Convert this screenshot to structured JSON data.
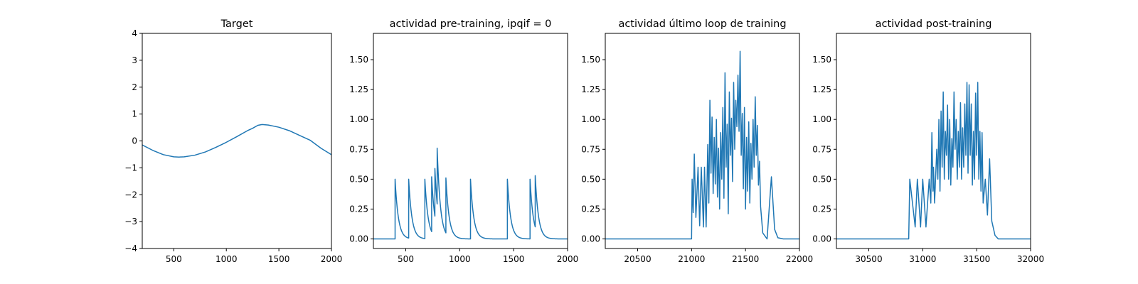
{
  "chart_data": [
    {
      "type": "line",
      "title": "Target",
      "xlabel": "",
      "ylabel": "",
      "xlim": [
        200,
        2000
      ],
      "ylim": [
        -4,
        4
      ],
      "xticks": [
        "500",
        "1000",
        "1500",
        "2000"
      ],
      "yticks": [
        "−4",
        "−3",
        "−2",
        "−1",
        "0",
        "1",
        "2",
        "3",
        "4"
      ],
      "grid": false,
      "color": "#1f77b4",
      "points": [
        [
          200,
          -0.15
        ],
        [
          300,
          -0.35
        ],
        [
          400,
          -0.51
        ],
        [
          500,
          -0.59
        ],
        [
          550,
          -0.6
        ],
        [
          600,
          -0.59
        ],
        [
          700,
          -0.53
        ],
        [
          800,
          -0.41
        ],
        [
          900,
          -0.24
        ],
        [
          1000,
          -0.05
        ],
        [
          1100,
          0.16
        ],
        [
          1200,
          0.38
        ],
        [
          1250,
          0.47
        ],
        [
          1300,
          0.58
        ],
        [
          1340,
          0.61
        ],
        [
          1400,
          0.59
        ],
        [
          1500,
          0.51
        ],
        [
          1600,
          0.38
        ],
        [
          1700,
          0.2
        ],
        [
          1800,
          0.02
        ],
        [
          1900,
          -0.27
        ],
        [
          2000,
          -0.51
        ]
      ]
    },
    {
      "type": "line",
      "title": "actividad pre-training, ipqif = 0",
      "xlabel": "",
      "ylabel": "",
      "xlim": [
        200,
        2000
      ],
      "ylim": [
        -0.08,
        1.72
      ],
      "xticks": [
        "500",
        "1000",
        "1500",
        "2000"
      ],
      "yticks": [
        "0.00",
        "0.25",
        "0.50",
        "0.75",
        "1.00",
        "1.25",
        "1.50"
      ],
      "grid": false,
      "color": "#1f77b4",
      "spikes": [
        [
          400,
          0.5
        ],
        [
          525,
          0.5
        ],
        [
          675,
          0.5
        ],
        [
          740,
          0.52
        ],
        [
          770,
          0.59
        ],
        [
          790,
          0.76
        ],
        [
          870,
          0.51
        ],
        [
          1100,
          0.5
        ],
        [
          1440,
          0.5
        ],
        [
          1650,
          0.5
        ],
        [
          1700,
          0.53
        ]
      ],
      "decay": 30,
      "baseline": 0
    },
    {
      "type": "line",
      "title": "actividad último loop de training",
      "xlabel": "",
      "ylabel": "",
      "xlim": [
        20200,
        22000
      ],
      "ylim": [
        -0.08,
        1.72
      ],
      "xticks": [
        "20500",
        "21000",
        "21500",
        "22000"
      ],
      "yticks": [
        "0.00",
        "0.25",
        "0.50",
        "0.75",
        "1.00",
        "1.25",
        "1.50"
      ],
      "grid": false,
      "color": "#1f77b4",
      "points": [
        [
          20200,
          0
        ],
        [
          21000,
          0
        ],
        [
          21005,
          0.5
        ],
        [
          21015,
          0.22
        ],
        [
          21025,
          0.71
        ],
        [
          21040,
          0.18
        ],
        [
          21060,
          0.6
        ],
        [
          21075,
          0.11
        ],
        [
          21090,
          0.6
        ],
        [
          21110,
          0.1
        ],
        [
          21120,
          0.6
        ],
        [
          21135,
          0.1
        ],
        [
          21150,
          0.79
        ],
        [
          21160,
          0.3
        ],
        [
          21170,
          1.16
        ],
        [
          21180,
          0.55
        ],
        [
          21190,
          1.02
        ],
        [
          21200,
          0.38
        ],
        [
          21210,
          0.85
        ],
        [
          21220,
          0.46
        ],
        [
          21230,
          1.0
        ],
        [
          21240,
          0.35
        ],
        [
          21250,
          0.76
        ],
        [
          21260,
          0.25
        ],
        [
          21270,
          0.89
        ],
        [
          21280,
          0.5
        ],
        [
          21290,
          1.1
        ],
        [
          21300,
          0.34
        ],
        [
          21310,
          1.39
        ],
        [
          21320,
          0.6
        ],
        [
          21330,
          0.96
        ],
        [
          21340,
          0.21
        ],
        [
          21350,
          1.23
        ],
        [
          21360,
          0.7
        ],
        [
          21370,
          1.01
        ],
        [
          21380,
          0.48
        ],
        [
          21390,
          1.31
        ],
        [
          21400,
          0.75
        ],
        [
          21410,
          1.16
        ],
        [
          21420,
          0.94
        ],
        [
          21430,
          1.37
        ],
        [
          21440,
          0.9
        ],
        [
          21450,
          1.57
        ],
        [
          21460,
          0.7
        ],
        [
          21470,
          1.05
        ],
        [
          21480,
          0.42
        ],
        [
          21490,
          1.1
        ],
        [
          21500,
          0.25
        ],
        [
          21510,
          0.85
        ],
        [
          21520,
          0.4
        ],
        [
          21530,
          0.98
        ],
        [
          21540,
          0.3
        ],
        [
          21550,
          0.8
        ],
        [
          21560,
          0.5
        ],
        [
          21570,
          1.0
        ],
        [
          21580,
          0.6
        ],
        [
          21590,
          1.19
        ],
        [
          21600,
          0.7
        ],
        [
          21610,
          0.95
        ],
        [
          21620,
          0.45
        ],
        [
          21630,
          0.65
        ],
        [
          21640,
          0.27
        ],
        [
          21660,
          0.05
        ],
        [
          21700,
          0
        ],
        [
          21740,
          0.52
        ],
        [
          21770,
          0.08
        ],
        [
          21800,
          0.01
        ],
        [
          21850,
          0
        ],
        [
          22000,
          0
        ]
      ]
    },
    {
      "type": "line",
      "title": "actividad post-training",
      "xlabel": "",
      "ylabel": "",
      "xlim": [
        30200,
        32000
      ],
      "ylim": [
        -0.08,
        1.72
      ],
      "xticks": [
        "30500",
        "31000",
        "31500",
        "32000"
      ],
      "yticks": [
        "0.00",
        "0.25",
        "0.50",
        "0.75",
        "1.00",
        "1.25",
        "1.50"
      ],
      "grid": false,
      "color": "#1f77b4",
      "points": [
        [
          30200,
          0
        ],
        [
          30870,
          0
        ],
        [
          30880,
          0.5
        ],
        [
          30930,
          0.1
        ],
        [
          30950,
          0.5
        ],
        [
          30980,
          0.1
        ],
        [
          31000,
          0.5
        ],
        [
          31030,
          0.1
        ],
        [
          31060,
          0.5
        ],
        [
          31075,
          0.3
        ],
        [
          31085,
          0.89
        ],
        [
          31095,
          0.4
        ],
        [
          31100,
          0.6
        ],
        [
          31110,
          0.3
        ],
        [
          31130,
          0.75
        ],
        [
          31140,
          0.5
        ],
        [
          31150,
          1.0
        ],
        [
          31160,
          0.4
        ],
        [
          31170,
          1.07
        ],
        [
          31180,
          0.6
        ],
        [
          31190,
          1.23
        ],
        [
          31200,
          0.5
        ],
        [
          31210,
          0.9
        ],
        [
          31220,
          0.7
        ],
        [
          31230,
          1.12
        ],
        [
          31240,
          0.5
        ],
        [
          31250,
          1.0
        ],
        [
          31260,
          0.45
        ],
        [
          31270,
          0.84
        ],
        [
          31280,
          0.6
        ],
        [
          31290,
          1.23
        ],
        [
          31300,
          0.75
        ],
        [
          31310,
          1.0
        ],
        [
          31320,
          0.5
        ],
        [
          31330,
          0.9
        ],
        [
          31340,
          0.6
        ],
        [
          31350,
          1.14
        ],
        [
          31360,
          0.5
        ],
        [
          31370,
          0.93
        ],
        [
          31380,
          0.6
        ],
        [
          31390,
          1.13
        ],
        [
          31400,
          0.7
        ],
        [
          31410,
          1.31
        ],
        [
          31420,
          0.55
        ],
        [
          31430,
          1.29
        ],
        [
          31440,
          0.7
        ],
        [
          31450,
          1.13
        ],
        [
          31460,
          0.45
        ],
        [
          31470,
          0.9
        ],
        [
          31480,
          0.5
        ],
        [
          31490,
          1.22
        ],
        [
          31500,
          0.7
        ],
        [
          31510,
          1.31
        ],
        [
          31520,
          0.5
        ],
        [
          31530,
          0.9
        ],
        [
          31540,
          0.4
        ],
        [
          31550,
          0.89
        ],
        [
          31560,
          0.3
        ],
        [
          31580,
          0.5
        ],
        [
          31600,
          0.2
        ],
        [
          31620,
          0.67
        ],
        [
          31640,
          0.15
        ],
        [
          31670,
          0.03
        ],
        [
          31700,
          0
        ],
        [
          32000,
          0
        ]
      ]
    }
  ]
}
